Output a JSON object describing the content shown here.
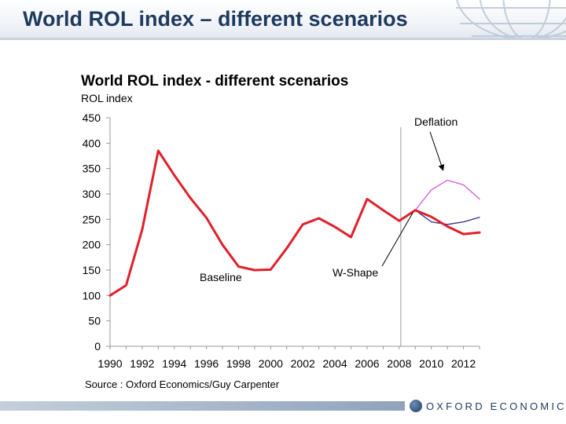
{
  "slide": {
    "title": "World ROL index – different scenarios",
    "logo_text": "OXFORD ECONOMICS",
    "accent_color": "#1e3a5f"
  },
  "chart_data": {
    "type": "line",
    "title": "World ROL index - different scenarios",
    "ylabel": "ROL index",
    "xlabel": "",
    "ylim": [
      0,
      450
    ],
    "xlim": [
      1990,
      2013
    ],
    "yticks": [
      0,
      50,
      100,
      150,
      200,
      250,
      300,
      350,
      400,
      450
    ],
    "xticks": [
      1990,
      1992,
      1994,
      1996,
      1998,
      2000,
      2002,
      2004,
      2006,
      2008,
      2010,
      2012
    ],
    "divider_year": 2008.1,
    "grid": false,
    "source": "Source : Oxford Economics/Guy Carpenter",
    "series": [
      {
        "name": "Baseline",
        "color": "#e0202a",
        "points": [
          [
            1990,
            100
          ],
          [
            1991,
            120
          ],
          [
            1992,
            230
          ],
          [
            1993,
            385
          ],
          [
            1994,
            337
          ],
          [
            1995,
            292
          ],
          [
            1996,
            253
          ],
          [
            1997,
            200
          ],
          [
            1998,
            157
          ],
          [
            1999,
            150
          ],
          [
            2000,
            151
          ],
          [
            2001,
            193
          ],
          [
            2002,
            240
          ],
          [
            2003,
            252
          ],
          [
            2004,
            235
          ],
          [
            2005,
            215
          ],
          [
            2006,
            290
          ],
          [
            2007,
            268
          ],
          [
            2008,
            247
          ],
          [
            2009,
            268
          ],
          [
            2010,
            255
          ],
          [
            2011,
            236
          ],
          [
            2012,
            221
          ],
          [
            2013,
            224
          ]
        ]
      },
      {
        "name": "Deflation",
        "color": "#d25ad2",
        "points": [
          [
            2009,
            268
          ],
          [
            2010,
            308
          ],
          [
            2011,
            327
          ],
          [
            2012,
            318
          ],
          [
            2013,
            290
          ]
        ]
      },
      {
        "name": "W-Shape",
        "color": "#2a2f8c",
        "points": [
          [
            2009,
            268
          ],
          [
            2010,
            245
          ],
          [
            2011,
            240
          ],
          [
            2012,
            245
          ],
          [
            2013,
            254
          ]
        ]
      }
    ],
    "annotations": [
      {
        "text": "Deflation",
        "target_series": "Deflation"
      },
      {
        "text": "W-Shape",
        "target_series": "W-Shape"
      },
      {
        "text": "Baseline",
        "target_series": "Baseline"
      }
    ]
  }
}
